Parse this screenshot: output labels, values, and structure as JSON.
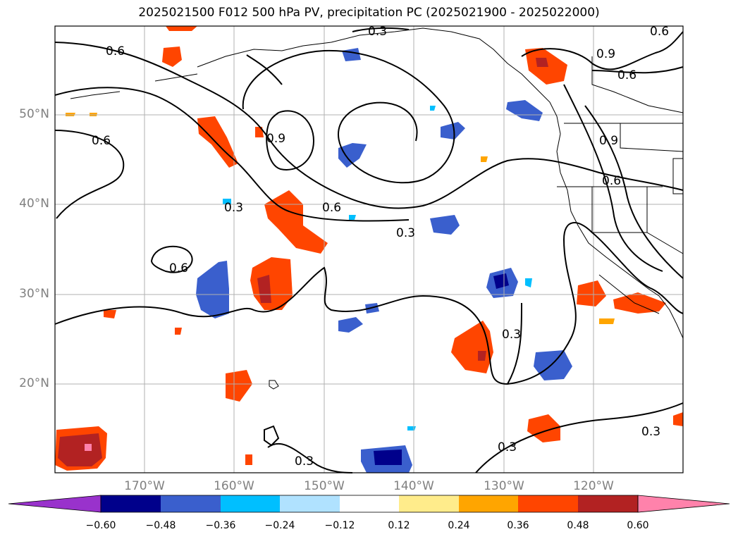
{
  "title": "2025021500 F012 500 hPa PV, precipitation PC (2025021900 - 2025022000)",
  "lat_labels": [
    "50°N",
    "40°N",
    "30°N",
    "20°N"
  ],
  "lon_labels": [
    "170°W",
    "160°W",
    "150°W",
    "140°W",
    "130°W",
    "120°W"
  ],
  "colorbar": {
    "ticks": [
      "−0.60",
      "−0.48",
      "−0.36",
      "−0.24",
      "−0.12",
      "0.12",
      "0.24",
      "0.36",
      "0.48",
      "0.60"
    ],
    "colors": [
      "#9932cc",
      "#00008b",
      "#3a5fcd",
      "#00bfff",
      "#b0e2ff",
      "#ffffff",
      "#ffec8b",
      "#ffa500",
      "#ff4500",
      "#b22222",
      "#ff82ab"
    ]
  },
  "contour_labels": [
    "0.3",
    "0.6",
    "0.9"
  ]
}
